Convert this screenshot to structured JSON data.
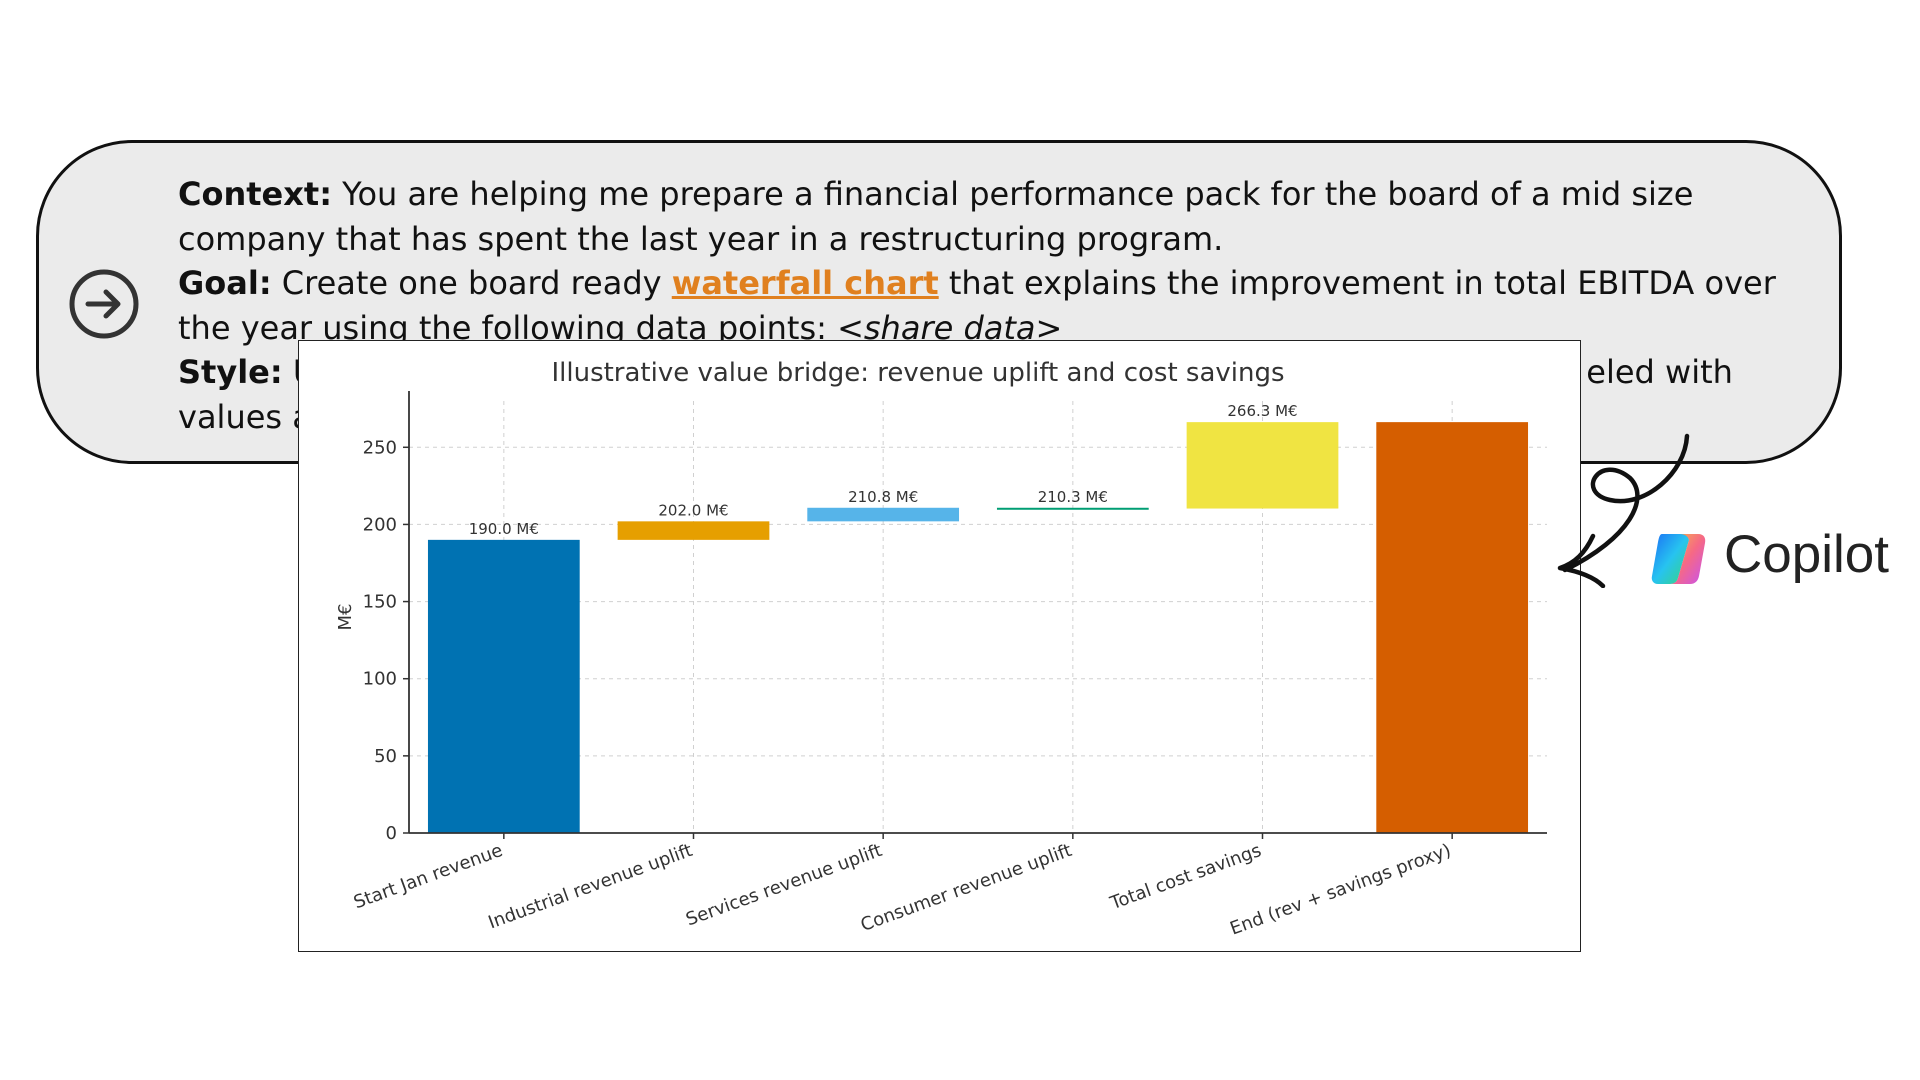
{
  "prompt": {
    "context_label": "Context:",
    "context_text": " You are helping me prepare a financial performance pack for the board of a mid size company that has spent the last year in a restructuring program.",
    "goal_label": "Goal:",
    "goal_text_1": " Create one board ready ",
    "goal_link": "waterfall chart",
    "goal_text_2": " that explains the improvement in total EBITDA over the year using the following data points: ",
    "goal_data": "<share data>",
    "style_label": "Style:",
    "style_text_visible_start": " U",
    "style_text_visible_end": "eled with",
    "line5_visible_start": "values a"
  },
  "send_icon": "arrow-right-circle-icon",
  "brand": {
    "name": "Copilot",
    "logo": "copilot-logo-icon"
  },
  "colors": {
    "card_bg": "#ebebeb",
    "link": "#e0801f",
    "bars": [
      "#0072b2",
      "#e69f00",
      "#56b4e9",
      "#009e73",
      "#f0e442",
      "#d55e00"
    ]
  },
  "chart_data": {
    "type": "bar",
    "subtype": "waterfall",
    "title": "Illustrative value bridge: revenue uplift and cost savings",
    "xlabel": "",
    "ylabel": "M€",
    "ylim": [
      0,
      280
    ],
    "yticks": [
      0,
      50,
      100,
      150,
      200,
      250
    ],
    "grid": true,
    "categories": [
      "Start Jan revenue",
      "Industrial revenue uplift",
      "Services revenue uplift",
      "Consumer revenue uplift",
      "Total cost savings",
      "End (rev + savings proxy)"
    ],
    "bars": [
      {
        "category": "Start Jan revenue",
        "start": 0,
        "end": 190.0,
        "label": "190.0 M€"
      },
      {
        "category": "Industrial revenue uplift",
        "start": 190.0,
        "end": 202.0,
        "label": "202.0 M€"
      },
      {
        "category": "Services revenue uplift",
        "start": 202.0,
        "end": 210.8,
        "label": "210.8 M€"
      },
      {
        "category": "Consumer revenue uplift",
        "start": 210.8,
        "end": 210.3,
        "label": "210.3 M€"
      },
      {
        "category": "Total cost savings",
        "start": 210.3,
        "end": 266.3,
        "label": "266.3 M€"
      },
      {
        "category": "End (rev + savings proxy)",
        "start": 0,
        "end": 266.3,
        "label": ""
      }
    ]
  }
}
